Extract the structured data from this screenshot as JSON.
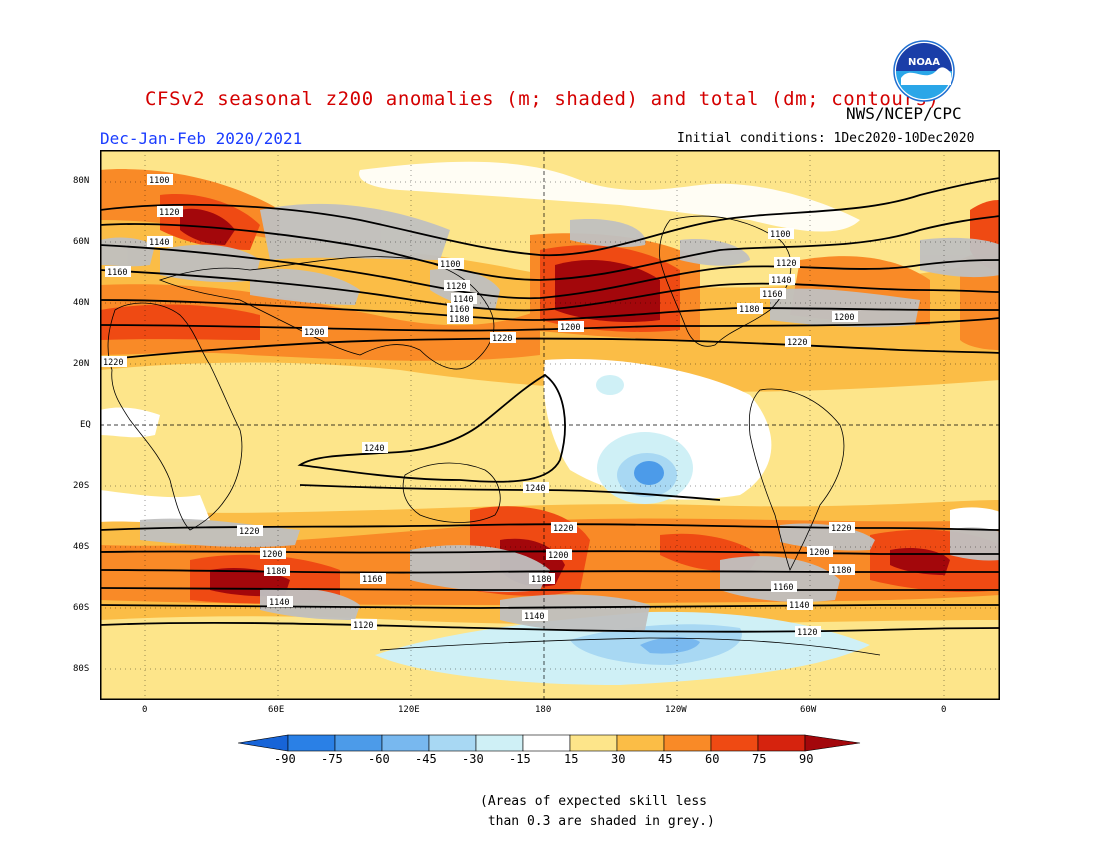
{
  "header": {
    "title": "CFSv2 seasonal z200 anomalies (m; shaded) and total (dm; contours)",
    "season": "Dec-Jan-Feb 2020/2021",
    "initial_conditions": "Initial conditions: 1Dec2020-10Dec2020",
    "agency": "NWS/NCEP/CPC",
    "logo_text": "NOAA"
  },
  "axes": {
    "lat_labels": [
      "80N",
      "60N",
      "40N",
      "20N",
      "EQ",
      "20S",
      "40S",
      "60S",
      "80S"
    ],
    "lon_labels": [
      "0",
      "60E",
      "120E",
      "180",
      "120W",
      "60W",
      "0"
    ]
  },
  "colorbar": {
    "labels": [
      "-90",
      "-75",
      "-60",
      "-45",
      "-30",
      "-15",
      "15",
      "30",
      "45",
      "60",
      "75",
      "90"
    ],
    "colors": [
      "#1764d8",
      "#2a80e6",
      "#4c9be9",
      "#78b8ef",
      "#a8d8f3",
      "#cff0f6",
      "#ffffff",
      "#fde58a",
      "#fbbd46",
      "#f98a27",
      "#ef4a13",
      "#d6230e",
      "#a3070b"
    ]
  },
  "contour_labels": [
    "1100",
    "1120",
    "1140",
    "1160",
    "1180",
    "1200",
    "1220",
    "1240"
  ],
  "colors": {
    "skill_grey": "#c0c0c0",
    "title_red": "#d40000",
    "season_blue": "#1a3cff"
  },
  "note": "(Areas of expected skill less\n than 0.3 are shaded in grey.)"
}
